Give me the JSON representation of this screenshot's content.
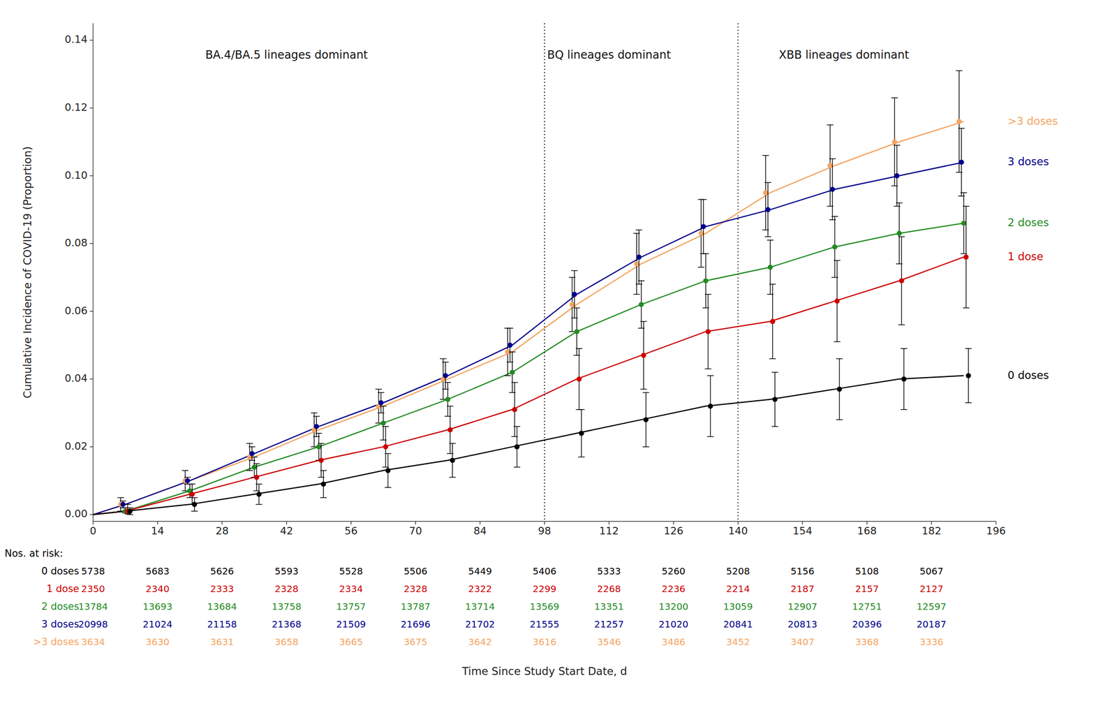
{
  "chart_data": {
    "type": "line",
    "xlabel": "Time Since Study Start Date, d",
    "ylabel": "Cumulative Incidence of COVID-19 (Proportion)",
    "xlim": [
      0,
      196
    ],
    "ylim": [
      -0.002,
      0.145
    ],
    "xticks": [
      0,
      14,
      28,
      42,
      56,
      70,
      84,
      98,
      112,
      126,
      140,
      154,
      168,
      182,
      196
    ],
    "yticks": [
      {
        "value": 0.0,
        "label": "0.00"
      },
      0.02,
      0.04,
      0.06,
      0.08,
      {
        "value": 0.1,
        "label": "0.10"
      },
      0.12,
      0.14
    ],
    "grid": false,
    "legend": "right",
    "marker": "circle",
    "series": [
      {
        "name": ">3 doses",
        "color": "#F4A460",
        "x": [
          7,
          21,
          35,
          49,
          63,
          77,
          91,
          105,
          119,
          133,
          147,
          161,
          175,
          189
        ],
        "values": [
          0.003,
          0.01,
          0.017,
          0.025,
          0.032,
          0.04,
          0.048,
          0.062,
          0.074,
          0.083,
          0.095,
          0.103,
          0.11,
          0.116
        ],
        "ci_lo": [
          0.001,
          0.007,
          0.013,
          0.02,
          0.027,
          0.034,
          0.041,
          0.054,
          0.065,
          0.073,
          0.084,
          0.091,
          0.097,
          0.101
        ],
        "ci_hi": [
          0.005,
          0.013,
          0.021,
          0.03,
          0.037,
          0.046,
          0.055,
          0.07,
          0.083,
          0.093,
          0.106,
          0.115,
          0.123,
          0.131
        ],
        "curve": {
          "x": [
            0,
            7,
            21,
            35,
            49,
            63,
            77,
            91,
            105,
            119,
            133,
            147,
            161,
            175,
            189
          ],
          "values": [
            0.0,
            0.003,
            0.01,
            0.017,
            0.025,
            0.032,
            0.04,
            0.048,
            0.062,
            0.074,
            0.083,
            0.095,
            0.103,
            0.11,
            0.116
          ]
        }
      },
      {
        "name": "3 doses",
        "color": "#00008B",
        "x": [
          7,
          21,
          35,
          49,
          63,
          77,
          91,
          105,
          119,
          133,
          147,
          161,
          175,
          189
        ],
        "values": [
          0.003,
          0.01,
          0.018,
          0.026,
          0.033,
          0.041,
          0.05,
          0.065,
          0.076,
          0.085,
          0.09,
          0.096,
          0.1,
          0.104
        ],
        "ci_lo": [
          0.002,
          0.009,
          0.016,
          0.023,
          0.03,
          0.037,
          0.045,
          0.058,
          0.068,
          0.077,
          0.082,
          0.087,
          0.091,
          0.094
        ],
        "ci_hi": [
          0.004,
          0.011,
          0.02,
          0.029,
          0.036,
          0.045,
          0.055,
          0.072,
          0.084,
          0.093,
          0.098,
          0.105,
          0.109,
          0.114
        ],
        "curve": {
          "x": [
            0,
            7,
            21,
            35,
            49,
            63,
            77,
            91,
            105,
            119,
            133,
            147,
            161,
            175,
            189
          ],
          "values": [
            0.0,
            0.003,
            0.01,
            0.018,
            0.026,
            0.033,
            0.041,
            0.05,
            0.065,
            0.076,
            0.085,
            0.09,
            0.096,
            0.1,
            0.104
          ]
        }
      },
      {
        "name": "2 doses",
        "color": "#228B22",
        "x": [
          7,
          21,
          35,
          49,
          63,
          77,
          91,
          105,
          119,
          133,
          147,
          161,
          175,
          189
        ],
        "values": [
          0.001,
          0.007,
          0.014,
          0.02,
          0.027,
          0.034,
          0.042,
          0.054,
          0.062,
          0.069,
          0.073,
          0.079,
          0.083,
          0.086
        ],
        "ci_lo": [
          0.0005,
          0.005,
          0.011,
          0.016,
          0.022,
          0.029,
          0.036,
          0.047,
          0.055,
          0.061,
          0.065,
          0.07,
          0.074,
          0.077
        ],
        "ci_hi": [
          0.002,
          0.009,
          0.017,
          0.024,
          0.032,
          0.039,
          0.048,
          0.061,
          0.069,
          0.077,
          0.081,
          0.088,
          0.092,
          0.095
        ],
        "curve": {
          "x": [
            0,
            7,
            21,
            35,
            49,
            63,
            77,
            91,
            105,
            119,
            133,
            147,
            161,
            175,
            189
          ],
          "values": [
            0.0,
            0.001,
            0.007,
            0.014,
            0.02,
            0.027,
            0.034,
            0.042,
            0.054,
            0.062,
            0.069,
            0.073,
            0.079,
            0.083,
            0.086
          ]
        }
      },
      {
        "name": "1 dose",
        "color": "#CC0000",
        "x": [
          7,
          21,
          35,
          49,
          63,
          77,
          91,
          105,
          119,
          133,
          147,
          161,
          175,
          189
        ],
        "values": [
          0.001,
          0.006,
          0.011,
          0.016,
          0.02,
          0.025,
          0.031,
          0.04,
          0.047,
          0.054,
          0.057,
          0.063,
          0.069,
          0.076
        ],
        "ci_lo": [
          0.0002,
          0.003,
          0.007,
          0.011,
          0.014,
          0.018,
          0.023,
          0.031,
          0.037,
          0.043,
          0.046,
          0.051,
          0.056,
          0.061
        ],
        "ci_hi": [
          0.003,
          0.009,
          0.015,
          0.021,
          0.026,
          0.032,
          0.039,
          0.049,
          0.057,
          0.065,
          0.068,
          0.075,
          0.082,
          0.091
        ],
        "curve": {
          "x": [
            0,
            7,
            21,
            35,
            49,
            63,
            77,
            91,
            105,
            119,
            133,
            147,
            161,
            175,
            189
          ],
          "values": [
            0.0,
            0.001,
            0.006,
            0.011,
            0.016,
            0.02,
            0.025,
            0.031,
            0.04,
            0.047,
            0.054,
            0.057,
            0.063,
            0.069,
            0.076
          ]
        }
      },
      {
        "name": "0 doses",
        "color": "#000000",
        "x": [
          7,
          21,
          35,
          49,
          63,
          77,
          91,
          105,
          119,
          133,
          147,
          161,
          175,
          189
        ],
        "values": [
          0.001,
          0.003,
          0.006,
          0.009,
          0.013,
          0.016,
          0.02,
          0.024,
          0.028,
          0.032,
          0.034,
          0.037,
          0.04,
          0.041
        ],
        "ci_lo": [
          0.0,
          0.001,
          0.003,
          0.005,
          0.008,
          0.011,
          0.014,
          0.017,
          0.02,
          0.023,
          0.026,
          0.028,
          0.031,
          0.033
        ],
        "ci_hi": [
          0.002,
          0.005,
          0.009,
          0.013,
          0.018,
          0.021,
          0.026,
          0.031,
          0.036,
          0.041,
          0.042,
          0.046,
          0.049,
          0.049
        ],
        "curve": {
          "x": [
            0,
            7,
            21,
            35,
            49,
            63,
            77,
            91,
            105,
            119,
            133,
            147,
            161,
            175,
            189
          ],
          "values": [
            0.0,
            0.001,
            0.003,
            0.006,
            0.009,
            0.013,
            0.016,
            0.02,
            0.024,
            0.028,
            0.032,
            0.034,
            0.037,
            0.04,
            0.041
          ]
        }
      }
    ],
    "vlines": [
      98,
      140
    ],
    "annotations": [
      {
        "text": "BA.4/BA.5 lineages dominant",
        "x": 42,
        "y": 0.137
      },
      {
        "text": "BQ lineages dominant",
        "x": 112,
        "y": 0.137
      },
      {
        "text": "XBB lineages dominant",
        "x": 163,
        "y": 0.137
      }
    ],
    "risk_table": {
      "title": "Nos. at risk:",
      "time_points": [
        0,
        14,
        28,
        42,
        56,
        70,
        84,
        98,
        112,
        126,
        140,
        154,
        168,
        182
      ],
      "rows": [
        {
          "name": "0 doses",
          "color": "#000000",
          "values": [
            5738,
            5683,
            5626,
            5593,
            5528,
            5506,
            5449,
            5406,
            5333,
            5260,
            5208,
            5156,
            5108,
            5067
          ]
        },
        {
          "name": "1 dose",
          "color": "#CC0000",
          "values": [
            2350,
            2340,
            2333,
            2328,
            2334,
            2328,
            2322,
            2299,
            2268,
            2236,
            2214,
            2187,
            2157,
            2127
          ]
        },
        {
          "name": "2 doses",
          "color": "#228B22",
          "values": [
            13784,
            13693,
            13684,
            13758,
            13757,
            13787,
            13714,
            13569,
            13351,
            13200,
            13059,
            12907,
            12751,
            12597
          ]
        },
        {
          "name": "3 doses",
          "color": "#00008B",
          "values": [
            20998,
            21024,
            21158,
            21368,
            21509,
            21696,
            21702,
            21555,
            21257,
            21020,
            20841,
            20813,
            20396,
            20187
          ]
        },
        {
          "name": ">3 doses",
          "color": "#F4A460",
          "values": [
            3634,
            3630,
            3631,
            3658,
            3665,
            3675,
            3642,
            3616,
            3546,
            3486,
            3452,
            3407,
            3368,
            3336
          ]
        }
      ]
    }
  }
}
